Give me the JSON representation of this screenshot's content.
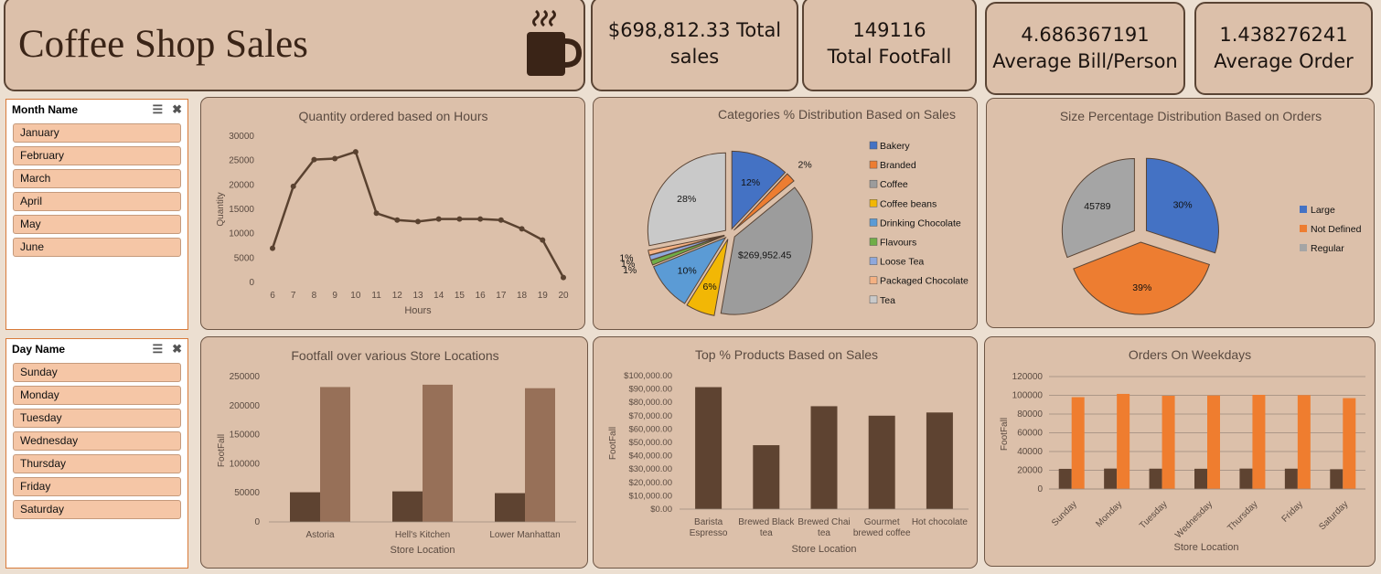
{
  "header": {
    "title": "Coffee Shop Sales"
  },
  "kpis": [
    {
      "line1": "$698,812.33 Total",
      "line2": "sales"
    },
    {
      "line1": "149116",
      "line2": "Total FootFall"
    },
    {
      "line1": "4.686367191",
      "line2": "Average Bill/Person"
    },
    {
      "line1": "1.438276241",
      "line2": "Average Order"
    }
  ],
  "slicers": {
    "month": {
      "title": "Month Name",
      "items": [
        "January",
        "February",
        "March",
        "April",
        "May",
        "June"
      ]
    },
    "day": {
      "title": "Day Name",
      "items": [
        "Sunday",
        "Monday",
        "Tuesday",
        "Wednesday",
        "Thursday",
        "Friday",
        "Saturday"
      ]
    }
  },
  "colors": {
    "brown_dark": "#5e4331",
    "brown_light": "#977058",
    "orange": "#ef7d2f",
    "line": "#5a4230"
  },
  "chart_data": [
    {
      "type": "line",
      "title": "Quantity ordered based on Hours",
      "xlabel": "Hours",
      "ylabel": "Quantity",
      "x": [
        6,
        7,
        8,
        9,
        10,
        11,
        12,
        13,
        14,
        15,
        16,
        17,
        18,
        19,
        20
      ],
      "values": [
        7000,
        19700,
        25200,
        25400,
        26800,
        14200,
        12800,
        12500,
        13000,
        13000,
        13000,
        12800,
        11000,
        8700,
        1000
      ],
      "ylim": [
        0,
        30000
      ],
      "yticks": [
        "30000",
        "25000",
        "20000",
        "15000",
        "10000",
        "5000",
        "0"
      ]
    },
    {
      "type": "pie",
      "title": "Categories % Distribution Based on Sales",
      "legend": "right",
      "slices": [
        {
          "name": "Bakery",
          "value": 12,
          "label": "12%",
          "color": "#4472c4"
        },
        {
          "name": "Branded",
          "value": 2,
          "label": "2%",
          "color": "#ed7d31"
        },
        {
          "name": "Coffee",
          "value": 38.6,
          "label": "$269,952.45",
          "color": "#9c9c9c"
        },
        {
          "name": "Coffee beans",
          "value": 6,
          "label": "6%",
          "color": "#f2b705"
        },
        {
          "name": "Drinking Chocolate",
          "value": 10,
          "label": "10%",
          "color": "#5b9bd5"
        },
        {
          "name": "Flavours",
          "value": 1,
          "label": "1%",
          "color": "#70ad47"
        },
        {
          "name": "Loose Tea",
          "value": 1,
          "label": "1%",
          "color": "#8fa8dc"
        },
        {
          "name": "Packaged Chocolate",
          "value": 1,
          "label": "1%",
          "color": "#f4b183"
        },
        {
          "name": "Tea",
          "value": 28,
          "label": "28%",
          "color": "#c9c9c9"
        }
      ]
    },
    {
      "type": "pie",
      "title": "Size Percentage Distribution Based on Orders",
      "legend": "right",
      "slices": [
        {
          "name": "Large",
          "value": 30,
          "label": "30%",
          "color": "#4472c4"
        },
        {
          "name": "Not Defined",
          "value": 39,
          "label": "39%",
          "color": "#ed7d31"
        },
        {
          "name": "Regular",
          "value": 31,
          "label": "45789",
          "color": "#a5a5a5"
        }
      ]
    },
    {
      "type": "bar",
      "title": "Footfall over various Store Locations",
      "xlabel": "Store Location",
      "ylabel": "FootFall",
      "categories": [
        "Astoria",
        "Hell's Kitchen",
        "Lower Manhattan"
      ],
      "series": [
        {
          "values": [
            51000,
            52500,
            49500
          ]
        },
        {
          "values": [
            232000,
            236000,
            230000
          ]
        }
      ],
      "ylim": [
        0,
        250000
      ],
      "yticks": [
        "250000",
        "200000",
        "150000",
        "100000",
        "50000",
        "0"
      ]
    },
    {
      "type": "bar",
      "title": "Top % Products Based on Sales",
      "xlabel": "Store Location",
      "ylabel": "FootFall",
      "categories": [
        [
          "Barista",
          "Espresso"
        ],
        [
          "Brewed Black",
          "tea"
        ],
        [
          "Brewed Chai",
          "tea"
        ],
        [
          "Gourmet",
          "brewed coffee"
        ],
        [
          "Hot chocolate"
        ]
      ],
      "values": [
        91400,
        47900,
        77100,
        70000,
        72400
      ],
      "ylim": [
        0,
        100000
      ],
      "yticks": [
        "$100,000.00",
        "$90,000.00",
        "$80,000.00",
        "$70,000.00",
        "$60,000.00",
        "$50,000.00",
        "$40,000.00",
        "$30,000.00",
        "$20,000.00",
        "$10,000.00",
        "$0.00"
      ]
    },
    {
      "type": "bar",
      "title": "Orders On Weekdays",
      "xlabel": "Store Location",
      "ylabel": "FootFall",
      "categories": [
        "Sunday",
        "Monday",
        "Tuesday",
        "Wednesday",
        "Thursday",
        "Friday",
        "Saturday"
      ],
      "series": [
        {
          "values": [
            21500,
            21800,
            21700,
            21600,
            21800,
            21700,
            21100
          ]
        },
        {
          "values": [
            98000,
            101500,
            99500,
            99800,
            100500,
            100200,
            97000
          ]
        }
      ],
      "ylim": [
        0,
        120000
      ],
      "yticks": [
        "120000",
        "100000",
        "80000",
        "60000",
        "40000",
        "20000",
        "0"
      ]
    }
  ]
}
